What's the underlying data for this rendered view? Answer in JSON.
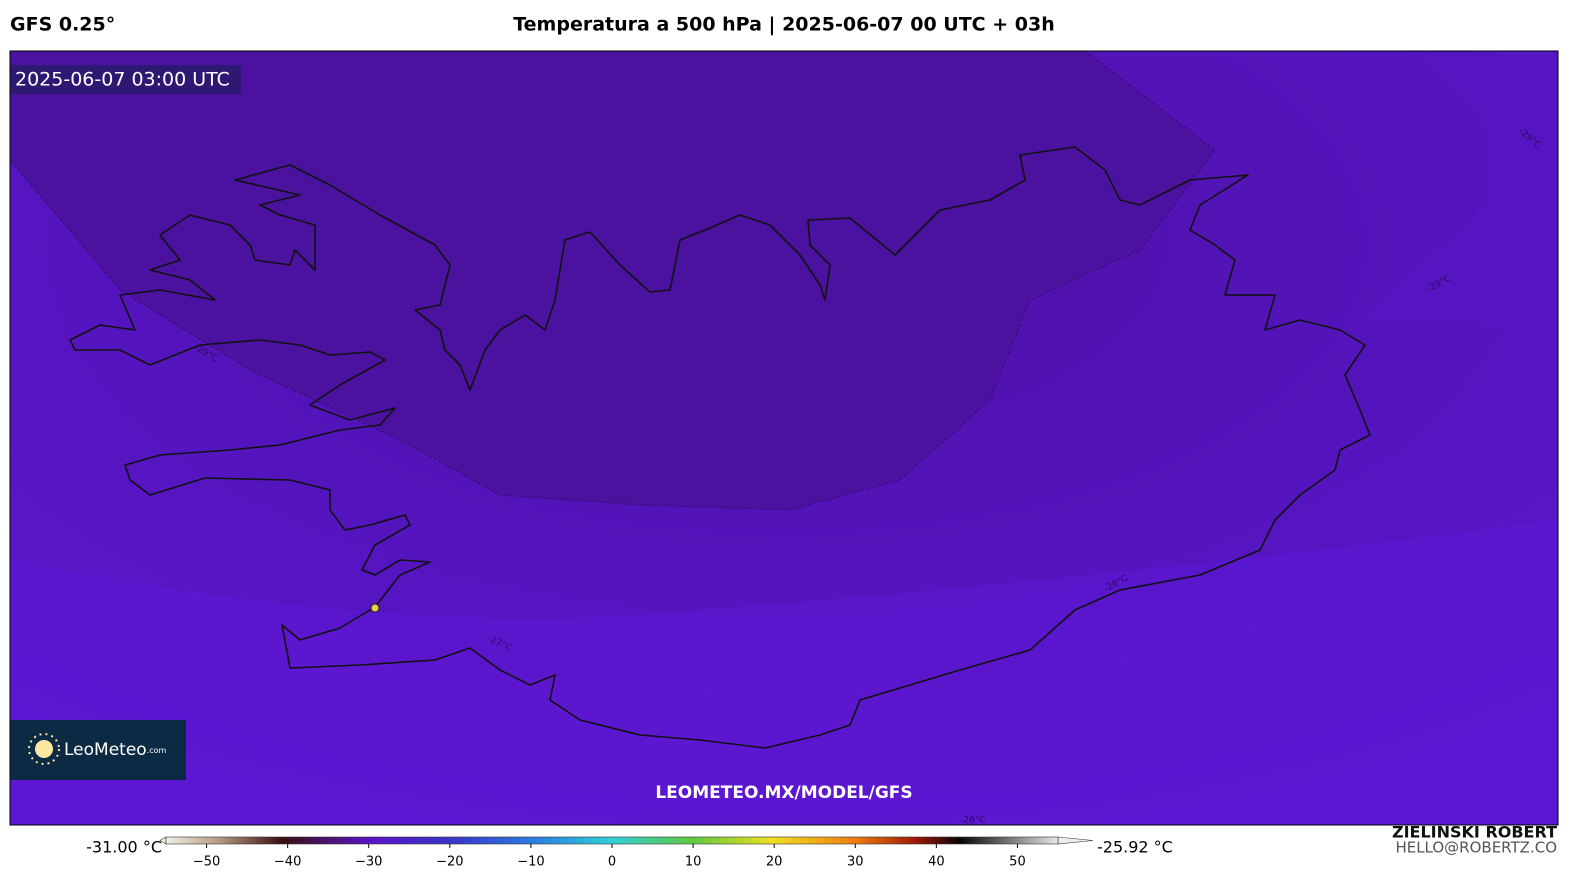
{
  "header": {
    "model": "GFS 0.25°",
    "title": "Temperatura a 500 hPa | 2025-06-07 00 UTC + 03h"
  },
  "map": {
    "timestamp": "2025-06-07 03:00 UTC",
    "watermark": "LEOMETEO.MX/MODEL/GFS",
    "logo": "LeoMeteo",
    "logo_suffix": ".com",
    "contour_labels": [
      "-29°C",
      "-28°C",
      "-27°C",
      "-26°C",
      "-29°C",
      "-29°C"
    ]
  },
  "colorbar": {
    "min_label": "-31.00 °C",
    "max_label": "-25.92 °C",
    "range": [
      -55,
      55
    ],
    "ticks": [
      {
        "value": -50,
        "label": "−50"
      },
      {
        "value": -40,
        "label": "−40"
      },
      {
        "value": -30,
        "label": "−30"
      },
      {
        "value": -20,
        "label": "−20"
      },
      {
        "value": -10,
        "label": "−10"
      },
      0,
      10,
      20,
      30,
      40,
      50
    ]
  },
  "credits": {
    "author": "ZIELINSKI ROBERT",
    "email": "HELLO@ROBERTZ.CO"
  }
}
